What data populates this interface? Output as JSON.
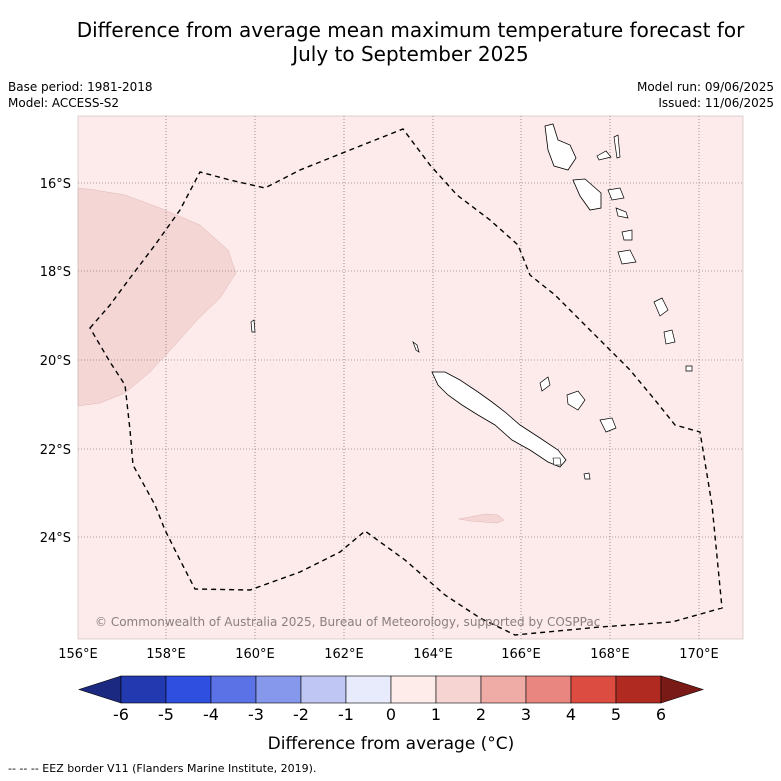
{
  "title_line1": "Difference from average mean maximum temperature forecast for",
  "title_line2": "July to September 2025",
  "base_period": "Base period: 1981-2018",
  "model": "Model: ACCESS-S2",
  "model_run": "Model run: 09/06/2025",
  "issued": "Issued: 11/06/2025",
  "copyright": "© Commonwealth of Australia 2025, Bureau of Meteorology, supported by COSPPac",
  "footer": "--  --  -- EEZ border V11 (Flanders Marine Institute, 2019).",
  "lon_labels": [
    "156°E",
    "158°E",
    "160°E",
    "162°E",
    "164°E",
    "166°E",
    "168°E",
    "170°E"
  ],
  "lat_labels": [
    "16°S",
    "18°S",
    "20°S",
    "22°S",
    "24°S"
  ],
  "colorbar": {
    "title": "Difference from average (°C)",
    "ticks": [
      "-6",
      "-5",
      "-4",
      "-3",
      "-2",
      "-1",
      "0",
      "1",
      "2",
      "3",
      "4",
      "5",
      "6"
    ],
    "colors": [
      "#1b2a80",
      "#2239b0",
      "#2f4fe0",
      "#5a72e6",
      "#8598ec",
      "#c0c6f4",
      "#e8ebfb",
      "#fdecea",
      "#f5d4d2",
      "#efaca6",
      "#e8867f",
      "#dd4c40",
      "#b02a22",
      "#7a1a16"
    ]
  },
  "colors": {
    "background_anomaly": "#fcebea",
    "warmer_anomaly": "#f4d6d5"
  }
}
